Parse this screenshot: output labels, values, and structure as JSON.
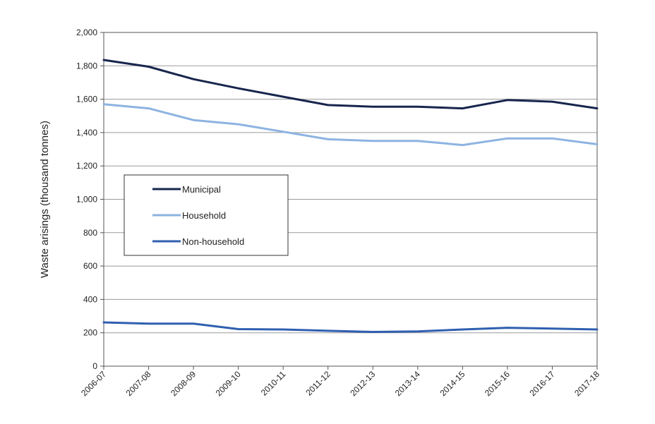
{
  "chart_data": {
    "type": "line",
    "title": "",
    "xlabel": "",
    "ylabel": "Waste arisings (thousand tonnes)",
    "categories": [
      "2006-07",
      "2007-08",
      "2008-09",
      "2009-10",
      "2010-11",
      "2011-12",
      "2012-13",
      "2013-14",
      "2014-15",
      "2015-16",
      "2016-17",
      "2017-18"
    ],
    "y_ticks": [
      "0",
      "200",
      "400",
      "600",
      "800",
      "1,000",
      "1,200",
      "1,400",
      "1,600",
      "1,800",
      "2,000"
    ],
    "ylim": [
      0,
      2000
    ],
    "grid": true,
    "legend_position": "middle-left",
    "series": [
      {
        "name": "Municipal",
        "color": "#17264d",
        "values": [
          1835,
          1795,
          1720,
          1665,
          1615,
          1565,
          1555,
          1555,
          1545,
          1595,
          1585,
          1545
        ]
      },
      {
        "name": "Household",
        "color": "#8db3e2",
        "values": [
          1570,
          1545,
          1475,
          1450,
          1405,
          1360,
          1350,
          1350,
          1325,
          1365,
          1365,
          1330
        ]
      },
      {
        "name": "Non-household",
        "color": "#2f5fb0",
        "values": [
          262,
          255,
          255,
          222,
          220,
          212,
          205,
          208,
          220,
          230,
          225,
          220
        ]
      }
    ]
  }
}
